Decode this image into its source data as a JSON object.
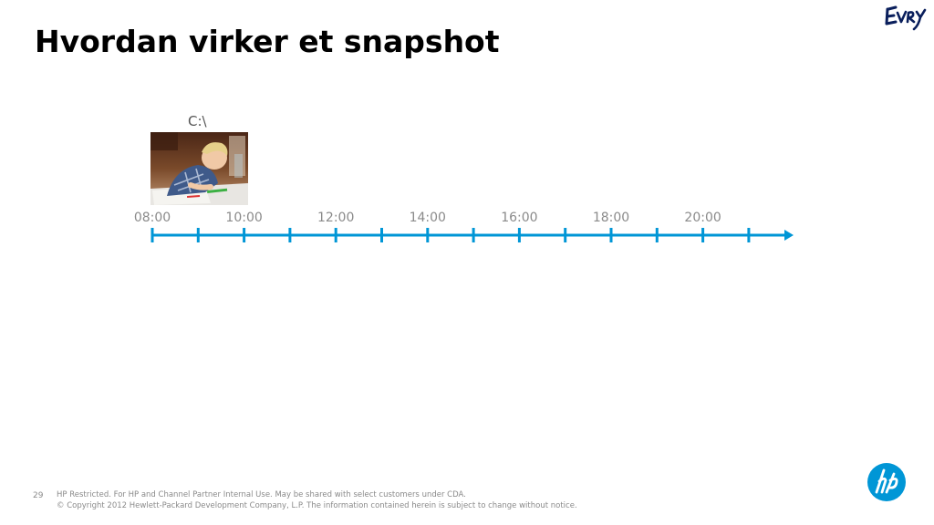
{
  "slide": {
    "title": "Hvordan virker et snapshot",
    "drive_label": "C:\\",
    "page_number": "29"
  },
  "timeline": {
    "times": [
      "08:00",
      "10:00",
      "12:00",
      "14:00",
      "16:00",
      "18:00",
      "20:00"
    ],
    "color": "#0096d6",
    "label_color": "#8a8a8a"
  },
  "footer": {
    "line1": "HP Restricted. For HP and Channel Partner Internal Use. May be shared with select customers under CDA.",
    "line2": "© Copyright 2012 Hewlett-Packard Development Company, L.P. The information contained herein is subject to change without notice."
  },
  "logos": {
    "evry": "Evry",
    "hp": "hp",
    "hp_color": "#0096d6"
  }
}
